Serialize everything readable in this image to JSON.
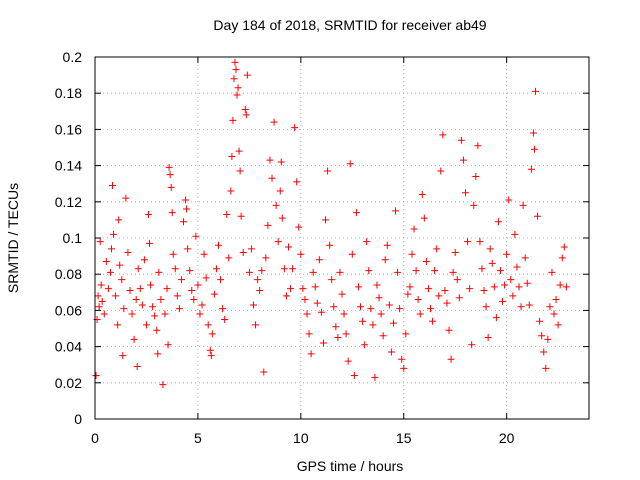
{
  "chart_data": {
    "type": "scatter",
    "title": "Day 184 of 2018, SRMTID for receiver ab49",
    "xlabel": "GPS time / hours",
    "ylabel": "SRMTID / TECUs",
    "xlim": [
      0,
      24
    ],
    "ylim": [
      0,
      0.2
    ],
    "x_ticks": [
      0,
      5,
      10,
      15,
      20
    ],
    "x_tick_labels": [
      "0",
      "5",
      "10",
      "15",
      "20"
    ],
    "y_ticks": [
      0,
      0.02,
      0.04,
      0.06,
      0.08,
      0.1,
      0.12,
      0.14,
      0.16,
      0.18,
      0.2
    ],
    "y_tick_labels": [
      "0",
      "0.02",
      "0.04",
      "0.06",
      "0.08",
      "0.1",
      "0.12",
      "0.14",
      "0.16",
      "0.18",
      "0.2"
    ],
    "grid": true,
    "marker": "+",
    "color": "#ff0000",
    "series": [
      {
        "name": "SRMTID",
        "points": [
          [
            0.05,
            0.024
          ],
          [
            0.1,
            0.055
          ],
          [
            0.15,
            0.068
          ],
          [
            0.2,
            0.062
          ],
          [
            0.25,
            0.098
          ],
          [
            0.3,
            0.074
          ],
          [
            0.35,
            0.065
          ],
          [
            0.45,
            0.058
          ],
          [
            0.55,
            0.087
          ],
          [
            0.65,
            0.072
          ],
          [
            0.75,
            0.081
          ],
          [
            0.8,
            0.094
          ],
          [
            0.85,
            0.129
          ],
          [
            0.9,
            0.102
          ],
          [
            1.0,
            0.068
          ],
          [
            1.1,
            0.052
          ],
          [
            1.15,
            0.11
          ],
          [
            1.2,
            0.085
          ],
          [
            1.3,
            0.077
          ],
          [
            1.35,
            0.035
          ],
          [
            1.4,
            0.061
          ],
          [
            1.5,
            0.122
          ],
          [
            1.6,
            0.092
          ],
          [
            1.7,
            0.071
          ],
          [
            1.8,
            0.058
          ],
          [
            1.9,
            0.044
          ],
          [
            2.0,
            0.066
          ],
          [
            2.05,
            0.029
          ],
          [
            2.1,
            0.083
          ],
          [
            2.2,
            0.072
          ],
          [
            2.3,
            0.063
          ],
          [
            2.4,
            0.088
          ],
          [
            2.5,
            0.052
          ],
          [
            2.6,
            0.113
          ],
          [
            2.65,
            0.097
          ],
          [
            2.7,
            0.074
          ],
          [
            2.8,
            0.062
          ],
          [
            2.9,
            0.057
          ],
          [
            3.0,
            0.049
          ],
          [
            3.05,
            0.036
          ],
          [
            3.1,
            0.081
          ],
          [
            3.2,
            0.066
          ],
          [
            3.3,
            0.019
          ],
          [
            3.4,
            0.058
          ],
          [
            3.5,
            0.072
          ],
          [
            3.55,
            0.041
          ],
          [
            3.6,
            0.139
          ],
          [
            3.65,
            0.135
          ],
          [
            3.7,
            0.128
          ],
          [
            3.75,
            0.114
          ],
          [
            3.8,
            0.091
          ],
          [
            3.9,
            0.083
          ],
          [
            4.0,
            0.068
          ],
          [
            4.1,
            0.061
          ],
          [
            4.2,
            0.077
          ],
          [
            4.3,
            0.109
          ],
          [
            4.4,
            0.121
          ],
          [
            4.45,
            0.116
          ],
          [
            4.5,
            0.094
          ],
          [
            4.6,
            0.082
          ],
          [
            4.7,
            0.071
          ],
          [
            4.8,
            0.066
          ],
          [
            4.9,
            0.101
          ],
          [
            5.0,
            0.074
          ],
          [
            5.1,
            0.058
          ],
          [
            5.2,
            0.063
          ],
          [
            5.3,
            0.091
          ],
          [
            5.4,
            0.078
          ],
          [
            5.5,
            0.052
          ],
          [
            5.6,
            0.038
          ],
          [
            5.65,
            0.035
          ],
          [
            5.7,
            0.047
          ],
          [
            5.8,
            0.069
          ],
          [
            5.9,
            0.083
          ],
          [
            6.0,
            0.096
          ],
          [
            6.1,
            0.077
          ],
          [
            6.2,
            0.061
          ],
          [
            6.3,
            0.055
          ],
          [
            6.4,
            0.113
          ],
          [
            6.5,
            0.089
          ],
          [
            6.6,
            0.126
          ],
          [
            6.65,
            0.145
          ],
          [
            6.7,
            0.165
          ],
          [
            6.75,
            0.188
          ],
          [
            6.8,
            0.197
          ],
          [
            6.85,
            0.193
          ],
          [
            6.9,
            0.179
          ],
          [
            6.95,
            0.183
          ],
          [
            7.0,
            0.148
          ],
          [
            7.05,
            0.137
          ],
          [
            7.1,
            0.112
          ],
          [
            7.2,
            0.092
          ],
          [
            7.3,
            0.171
          ],
          [
            7.35,
            0.168
          ],
          [
            7.4,
            0.19
          ],
          [
            7.5,
            0.081
          ],
          [
            7.6,
            0.094
          ],
          [
            7.7,
            0.063
          ],
          [
            7.8,
            0.052
          ],
          [
            7.9,
            0.077
          ],
          [
            8.0,
            0.071
          ],
          [
            8.1,
            0.082
          ],
          [
            8.2,
            0.026
          ],
          [
            8.3,
            0.089
          ],
          [
            8.4,
            0.107
          ],
          [
            8.5,
            0.143
          ],
          [
            8.6,
            0.133
          ],
          [
            8.7,
            0.164
          ],
          [
            8.8,
            0.118
          ],
          [
            8.9,
            0.098
          ],
          [
            9.0,
            0.126
          ],
          [
            9.05,
            0.142
          ],
          [
            9.1,
            0.111
          ],
          [
            9.2,
            0.083
          ],
          [
            9.3,
            0.068
          ],
          [
            9.4,
            0.095
          ],
          [
            9.5,
            0.072
          ],
          [
            9.6,
            0.083
          ],
          [
            9.7,
            0.161
          ],
          [
            9.8,
            0.131
          ],
          [
            9.9,
            0.106
          ],
          [
            10.0,
            0.091
          ],
          [
            10.1,
            0.072
          ],
          [
            10.2,
            0.066
          ],
          [
            10.3,
            0.058
          ],
          [
            10.4,
            0.047
          ],
          [
            10.5,
            0.036
          ],
          [
            10.6,
            0.081
          ],
          [
            10.7,
            0.073
          ],
          [
            10.8,
            0.064
          ],
          [
            10.9,
            0.088
          ],
          [
            11.0,
            0.059
          ],
          [
            11.1,
            0.042
          ],
          [
            11.2,
            0.11
          ],
          [
            11.3,
            0.137
          ],
          [
            11.4,
            0.096
          ],
          [
            11.5,
            0.077
          ],
          [
            11.6,
            0.062
          ],
          [
            11.7,
            0.051
          ],
          [
            11.8,
            0.045
          ],
          [
            11.9,
            0.081
          ],
          [
            12.0,
            0.069
          ],
          [
            12.1,
            0.058
          ],
          [
            12.2,
            0.047
          ],
          [
            12.3,
            0.032
          ],
          [
            12.4,
            0.141
          ],
          [
            12.5,
            0.091
          ],
          [
            12.6,
            0.024
          ],
          [
            12.7,
            0.114
          ],
          [
            12.8,
            0.073
          ],
          [
            12.9,
            0.062
          ],
          [
            13.0,
            0.054
          ],
          [
            13.1,
            0.041
          ],
          [
            13.2,
            0.098
          ],
          [
            13.3,
            0.082
          ],
          [
            13.4,
            0.061
          ],
          [
            13.5,
            0.052
          ],
          [
            13.6,
            0.023
          ],
          [
            13.7,
            0.074
          ],
          [
            13.8,
            0.067
          ],
          [
            13.9,
            0.058
          ],
          [
            14.0,
            0.046
          ],
          [
            14.1,
            0.088
          ],
          [
            14.2,
            0.096
          ],
          [
            14.3,
            0.063
          ],
          [
            14.4,
            0.037
          ],
          [
            14.5,
            0.053
          ],
          [
            14.6,
            0.115
          ],
          [
            14.7,
            0.081
          ],
          [
            14.8,
            0.061
          ],
          [
            14.9,
            0.033
          ],
          [
            15.0,
            0.028
          ],
          [
            15.1,
            0.047
          ],
          [
            15.2,
            0.069
          ],
          [
            15.3,
            0.073
          ],
          [
            15.4,
            0.091
          ],
          [
            15.5,
            0.105
          ],
          [
            15.6,
            0.082
          ],
          [
            15.7,
            0.066
          ],
          [
            15.8,
            0.058
          ],
          [
            15.9,
            0.124
          ],
          [
            16.0,
            0.111
          ],
          [
            16.1,
            0.087
          ],
          [
            16.2,
            0.072
          ],
          [
            16.3,
            0.061
          ],
          [
            16.4,
            0.054
          ],
          [
            16.5,
            0.082
          ],
          [
            16.6,
            0.094
          ],
          [
            16.7,
            0.068
          ],
          [
            16.8,
            0.137
          ],
          [
            16.9,
            0.157
          ],
          [
            17.0,
            0.071
          ],
          [
            17.1,
            0.064
          ],
          [
            17.2,
            0.049
          ],
          [
            17.3,
            0.033
          ],
          [
            17.4,
            0.081
          ],
          [
            17.5,
            0.092
          ],
          [
            17.6,
            0.077
          ],
          [
            17.7,
            0.067
          ],
          [
            17.8,
            0.154
          ],
          [
            17.9,
            0.143
          ],
          [
            18.0,
            0.125
          ],
          [
            18.1,
            0.098
          ],
          [
            18.2,
            0.072
          ],
          [
            18.3,
            0.041
          ],
          [
            18.4,
            0.118
          ],
          [
            18.5,
            0.134
          ],
          [
            18.6,
            0.151
          ],
          [
            18.7,
            0.098
          ],
          [
            18.8,
            0.083
          ],
          [
            18.9,
            0.071
          ],
          [
            19.0,
            0.062
          ],
          [
            19.1,
            0.045
          ],
          [
            19.2,
            0.094
          ],
          [
            19.3,
            0.086
          ],
          [
            19.4,
            0.073
          ],
          [
            19.5,
            0.056
          ],
          [
            19.6,
            0.109
          ],
          [
            19.7,
            0.082
          ],
          [
            19.8,
            0.065
          ],
          [
            19.9,
            0.074
          ],
          [
            20.0,
            0.091
          ],
          [
            20.1,
            0.121
          ],
          [
            20.2,
            0.077
          ],
          [
            20.3,
            0.068
          ],
          [
            20.4,
            0.102
          ],
          [
            20.5,
            0.084
          ],
          [
            20.6,
            0.073
          ],
          [
            20.7,
            0.062
          ],
          [
            20.8,
            0.118
          ],
          [
            20.9,
            0.089
          ],
          [
            21.0,
            0.075
          ],
          [
            21.1,
            0.063
          ],
          [
            21.2,
            0.138
          ],
          [
            21.3,
            0.158
          ],
          [
            21.35,
            0.149
          ],
          [
            21.4,
            0.181
          ],
          [
            21.5,
            0.112
          ],
          [
            21.6,
            0.054
          ],
          [
            21.7,
            0.046
          ],
          [
            21.8,
            0.037
          ],
          [
            21.9,
            0.028
          ],
          [
            22.0,
            0.044
          ],
          [
            22.1,
            0.062
          ],
          [
            22.2,
            0.081
          ],
          [
            22.3,
            0.058
          ],
          [
            22.4,
            0.066
          ],
          [
            22.5,
            0.052
          ],
          [
            22.6,
            0.074
          ],
          [
            22.7,
            0.089
          ],
          [
            22.8,
            0.095
          ],
          [
            22.9,
            0.073
          ]
        ]
      }
    ]
  }
}
